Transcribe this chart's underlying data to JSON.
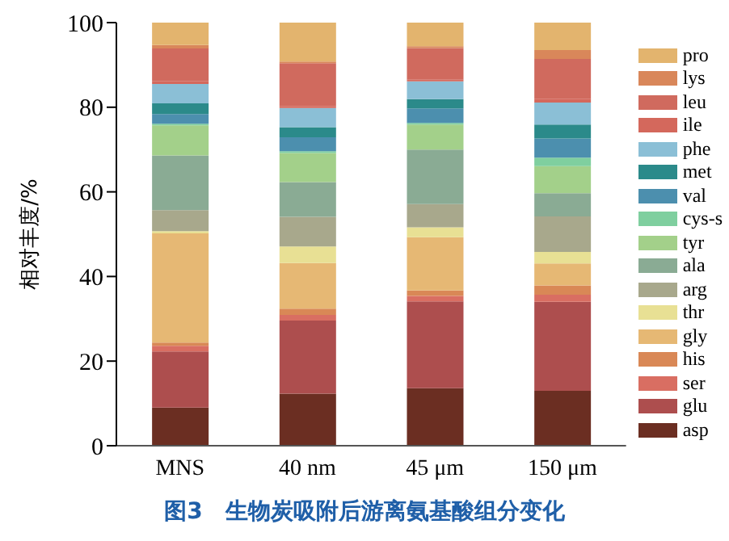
{
  "chart_data": {
    "type": "bar",
    "stacked": true,
    "title": "图3　生物炭吸附后游离氨基酸组分变化",
    "ylabel": "相对丰度/%",
    "categories": [
      "MNS",
      "40 nm",
      "45 μm",
      "150 μm"
    ],
    "ylim": [
      0,
      100
    ],
    "yticks": [
      0,
      20,
      40,
      60,
      80,
      100
    ],
    "grid": false,
    "legend": "right",
    "series": [
      {
        "name": "asp",
        "color": "#6b2e22",
        "values": [
          9,
          12.3,
          13.6,
          13
        ]
      },
      {
        "name": "glu",
        "color": "#ad4e4e",
        "values": [
          13.3,
          17.3,
          20.5,
          21
        ]
      },
      {
        "name": "ser",
        "color": "#d96e62",
        "values": [
          1.3,
          1.3,
          1.3,
          1.7
        ]
      },
      {
        "name": "his",
        "color": "#d98856",
        "values": [
          0.8,
          1.5,
          1.3,
          2.2
        ]
      },
      {
        "name": "gly",
        "color": "#e6b874",
        "values": [
          25.8,
          10.8,
          12.6,
          5.2
        ]
      },
      {
        "name": "thr",
        "color": "#e8e094",
        "values": [
          0.5,
          3.9,
          2.3,
          2.7
        ]
      },
      {
        "name": "arg",
        "color": "#a8a88c",
        "values": [
          5,
          7,
          5.5,
          8.4
        ]
      },
      {
        "name": "ala",
        "color": "#8aab94",
        "values": [
          12.9,
          8.2,
          12.9,
          5.5
        ]
      },
      {
        "name": "tyr",
        "color": "#a3d08a",
        "values": [
          7.1,
          6.9,
          5.9,
          6.4
        ]
      },
      {
        "name": "cys-s",
        "color": "#7fcf9f",
        "values": [
          0.4,
          0.4,
          0.4,
          2
        ]
      },
      {
        "name": "val",
        "color": "#4c8fae",
        "values": [
          2.3,
          3.3,
          3.4,
          4.5
        ]
      },
      {
        "name": "met",
        "color": "#2b8a8a",
        "values": [
          2.5,
          2.4,
          2.2,
          3.3
        ]
      },
      {
        "name": "phe",
        "color": "#8bbfd6",
        "values": [
          4.6,
          4.5,
          4.2,
          5.2
        ]
      },
      {
        "name": "ile",
        "color": "#d4685c",
        "values": [
          0.6,
          0.5,
          0.4,
          0.9
        ]
      },
      {
        "name": "leu",
        "color": "#d06a5e",
        "values": [
          7.8,
          10.1,
          7.5,
          9.4
        ]
      },
      {
        "name": "lys",
        "color": "#d9875a",
        "values": [
          0.8,
          0.4,
          0.4,
          2.1
        ]
      },
      {
        "name": "pro",
        "color": "#e3b46e",
        "values": [
          5.3,
          9.2,
          5.6,
          6.5
        ]
      }
    ]
  }
}
